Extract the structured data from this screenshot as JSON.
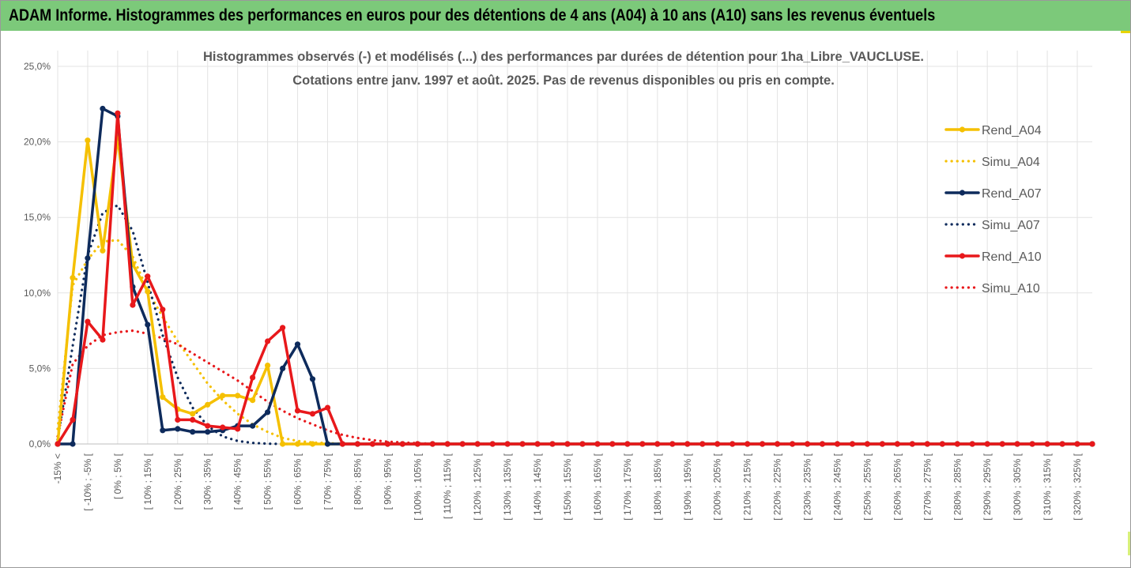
{
  "banner": {
    "title": "ADAM Informe. Histogrammes des performances en euros pour des détentions de 4 ans (A04) à 10 ans (A10) sans les revenus éventuels",
    "background_color": "#7cc97a"
  },
  "chart_data": {
    "type": "line",
    "title_lines": [
      "Histogrammes observés (-)  et modélisés (...) des performances par durées de détention pour 1ha_Libre_VAUCLUSE.",
      "Cotations entre janv. 1997 et août. 2025. Pas de revenus disponibles ou pris en compte."
    ],
    "ylim": [
      0,
      25
    ],
    "y_ticks": [
      "0,0%",
      "5,0%",
      "10,0%",
      "15,0%",
      "20,0%",
      "25,0%"
    ],
    "grid": "vertical and horizontal",
    "legend_position": "right",
    "x_tick_labels": [
      "-15% <",
      "[ -10% ; -5% [",
      "[ 0% ; 5% [",
      "[ 10% ; 15% [",
      "[ 20% ; 25% [",
      "[ 30% ; 35% [",
      "[ 40% ; 45% [",
      "[ 50% ; 55% [",
      "[ 60% ; 65% [",
      "[ 70% ; 75% [",
      "[ 80% ; 85% [",
      "[ 90% ; 95% [",
      "[ 100% ; 105% [",
      "[ 110% ; 115% [",
      "[ 120% ; 125% [",
      "[ 130% ; 135% [",
      "[ 140% ; 145% [",
      "[ 150% ; 155% [",
      "[ 160% ; 165% [",
      "[ 170% ; 175% [",
      "[ 180% ; 185% [",
      "[ 190% ; 195% [",
      "[ 200% ; 205% [",
      "[ 210% ; 215% [",
      "[ 220% ; 225% [",
      "[ 230% ; 235% [",
      "[ 240% ; 245% [",
      "[ 250% ; 255% [",
      "[ 260% ; 265% [",
      "[ 270% ; 275% [",
      "[ 280% ; 285% [",
      "[ 290% ; 295% [",
      "[ 300% ; 305% [",
      "[ 310% ; 315% [",
      "[ 320% ; 325% ["
    ],
    "x_positions": {
      "series_x_start": -15,
      "series_x_step": 5,
      "x_min": -15,
      "x_max": 330,
      "labeled_x_start": -15,
      "labeled_x_step": 10
    },
    "series": [
      {
        "name": "Rend_A04",
        "style": "solid",
        "markers": true,
        "color": "#f5c000",
        "values": [
          0,
          11.0,
          20.1,
          12.8,
          20.3,
          11.9,
          10.1,
          3.1,
          2.3,
          2.0,
          2.6,
          3.2,
          3.2,
          2.9,
          5.2,
          0,
          0,
          0,
          0,
          0,
          0,
          0,
          0,
          0,
          0,
          0,
          0,
          0,
          0,
          0,
          0,
          0,
          0,
          0,
          0,
          0,
          0,
          0,
          0,
          0,
          0,
          0,
          0,
          0,
          0,
          0,
          0,
          0,
          0,
          0,
          0,
          0,
          0,
          0,
          0,
          0,
          0,
          0,
          0,
          0,
          0,
          0,
          0,
          0,
          0,
          0,
          0,
          0,
          0,
          0
        ]
      },
      {
        "name": "Simu_A04",
        "style": "dotted",
        "markers": false,
        "color": "#f5c000",
        "values": [
          1.0,
          10.5,
          12.2,
          13.4,
          13.5,
          12.4,
          10.2,
          8.4,
          6.8,
          5.4,
          4.0,
          2.9,
          2.0,
          1.3,
          0.8,
          0.4,
          0.2,
          0.1,
          0.05,
          0.02,
          0,
          0,
          0,
          0,
          0,
          0,
          0,
          0,
          0,
          0,
          0,
          0,
          0,
          0,
          0,
          0,
          0,
          0,
          0,
          0,
          0,
          0,
          0,
          0,
          0,
          0,
          0,
          0,
          0,
          0,
          0,
          0,
          0,
          0,
          0,
          0,
          0,
          0,
          0,
          0,
          0,
          0,
          0,
          0,
          0,
          0,
          0,
          0,
          0,
          0
        ]
      },
      {
        "name": "Rend_A07",
        "style": "solid",
        "markers": true,
        "color": "#0e2b5c",
        "values": [
          0,
          0,
          12.3,
          22.2,
          21.7,
          10.4,
          7.9,
          0.9,
          1.0,
          0.8,
          0.8,
          0.9,
          1.2,
          1.2,
          2.1,
          5.0,
          6.6,
          4.3,
          0,
          0,
          0,
          0,
          0,
          0,
          0,
          0,
          0,
          0,
          0,
          0,
          0,
          0,
          0,
          0,
          0,
          0,
          0,
          0,
          0,
          0,
          0,
          0,
          0,
          0,
          0,
          0,
          0,
          0,
          0,
          0,
          0,
          0,
          0,
          0,
          0,
          0,
          0,
          0,
          0,
          0,
          0,
          0,
          0,
          0,
          0,
          0,
          0,
          0,
          0,
          0
        ]
      },
      {
        "name": "Simu_A07",
        "style": "dotted",
        "markers": false,
        "color": "#0e2b5c",
        "values": [
          0.3,
          6.5,
          12.5,
          15.3,
          15.8,
          14.1,
          10.7,
          7.2,
          4.4,
          2.4,
          1.2,
          0.5,
          0.2,
          0.07,
          0.02,
          0,
          0,
          0,
          0,
          0,
          0,
          0,
          0,
          0,
          0,
          0,
          0,
          0,
          0,
          0,
          0,
          0,
          0,
          0,
          0,
          0,
          0,
          0,
          0,
          0,
          0,
          0,
          0,
          0,
          0,
          0,
          0,
          0,
          0,
          0,
          0,
          0,
          0,
          0,
          0,
          0,
          0,
          0,
          0,
          0,
          0,
          0,
          0,
          0,
          0,
          0,
          0,
          0,
          0,
          0
        ]
      },
      {
        "name": "Rend_A10",
        "style": "solid",
        "markers": true,
        "color": "#e8181b",
        "values": [
          0,
          1.6,
          8.1,
          6.9,
          21.9,
          9.2,
          11.1,
          8.9,
          1.6,
          1.6,
          1.2,
          1.1,
          1.0,
          4.4,
          6.8,
          7.7,
          2.2,
          2.0,
          2.4,
          0,
          0,
          0,
          0,
          0,
          0,
          0,
          0,
          0,
          0,
          0,
          0,
          0,
          0,
          0,
          0,
          0,
          0,
          0,
          0,
          0,
          0,
          0,
          0,
          0,
          0,
          0,
          0,
          0,
          0,
          0,
          0,
          0,
          0,
          0,
          0,
          0,
          0,
          0,
          0,
          0,
          0,
          0,
          0,
          0,
          0,
          0,
          0,
          0,
          0,
          0
        ]
      },
      {
        "name": "Simu_A10",
        "style": "dotted",
        "markers": false,
        "color": "#e8181b",
        "values": [
          0.5,
          5.3,
          6.5,
          7.2,
          7.4,
          7.5,
          7.3,
          7.0,
          6.6,
          6.0,
          5.4,
          4.8,
          4.2,
          3.5,
          2.8,
          2.2,
          1.7,
          1.3,
          0.9,
          0.6,
          0.4,
          0.25,
          0.15,
          0.1,
          0.05,
          0.02,
          0,
          0,
          0,
          0,
          0,
          0,
          0,
          0,
          0,
          0,
          0,
          0,
          0,
          0,
          0,
          0,
          0,
          0,
          0,
          0,
          0,
          0,
          0,
          0,
          0,
          0,
          0,
          0,
          0,
          0,
          0,
          0,
          0,
          0,
          0,
          0,
          0,
          0,
          0,
          0,
          0,
          0,
          0,
          0
        ]
      }
    ]
  }
}
